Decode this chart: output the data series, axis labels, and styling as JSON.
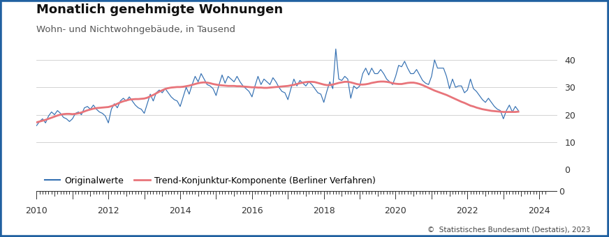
{
  "title": "Monatlich genehmigte Wohnungen",
  "subtitle": "Wohn- und Nichtwohngebäude, in Tausend",
  "ylim": [
    0,
    45
  ],
  "yticks": [
    0,
    10,
    20,
    30,
    40
  ],
  "xlim": [
    2010.0,
    2024.5
  ],
  "xticks": [
    2010,
    2012,
    2014,
    2016,
    2018,
    2020,
    2022,
    2024
  ],
  "xticklabels": [
    "2010",
    "2012",
    "2014",
    "2016",
    "2018",
    "2020",
    "2022",
    "2024"
  ],
  "line_color": "#3470B2",
  "trend_color": "#E8747A",
  "border_color": "#2060A0",
  "title_fontsize": 13,
  "subtitle_fontsize": 9.5,
  "legend_label_original": "Originalwerte",
  "legend_label_trend": "Trend-Konjunktur-Komponente (Berliner Verfahren)",
  "footer_text": "©  Statistisches Bundesamt (Destatis), 2023",
  "original_values": [
    16.0,
    17.5,
    18.5,
    17.0,
    19.5,
    21.0,
    20.0,
    21.5,
    20.5,
    19.0,
    18.5,
    17.5,
    18.5,
    20.5,
    21.0,
    20.0,
    22.5,
    23.0,
    22.0,
    23.5,
    22.0,
    21.0,
    20.5,
    19.5,
    17.0,
    22.0,
    24.0,
    22.5,
    25.0,
    26.0,
    25.0,
    26.5,
    25.0,
    23.5,
    22.5,
    22.0,
    20.5,
    24.0,
    27.5,
    25.0,
    28.0,
    29.0,
    28.0,
    29.5,
    28.0,
    26.5,
    25.5,
    25.0,
    23.0,
    26.5,
    30.0,
    27.5,
    31.0,
    34.0,
    32.0,
    35.0,
    33.0,
    31.0,
    30.5,
    29.5,
    27.0,
    31.0,
    34.5,
    31.5,
    34.0,
    33.0,
    32.0,
    34.0,
    32.0,
    30.5,
    29.5,
    28.5,
    26.5,
    30.5,
    34.0,
    31.0,
    33.0,
    32.0,
    31.0,
    33.5,
    32.0,
    30.0,
    28.5,
    28.0,
    25.5,
    29.5,
    33.0,
    30.5,
    32.5,
    31.5,
    30.5,
    32.0,
    31.0,
    29.5,
    28.0,
    27.5,
    24.5,
    28.5,
    32.0,
    29.5,
    44.0,
    33.0,
    32.5,
    34.0,
    33.0,
    26.0,
    30.5,
    29.5,
    30.5,
    35.0,
    37.0,
    34.5,
    37.0,
    35.0,
    35.0,
    36.5,
    35.0,
    33.0,
    32.0,
    31.0,
    34.0,
    38.0,
    37.5,
    39.5,
    37.0,
    35.0,
    35.0,
    36.5,
    34.5,
    32.5,
    31.5,
    31.0,
    34.0,
    40.0,
    37.0,
    37.0,
    37.0,
    34.0,
    29.5,
    33.0,
    30.0,
    30.5,
    30.5,
    28.0,
    29.0,
    33.0,
    29.5,
    28.5,
    27.0,
    25.5,
    24.5,
    26.0,
    24.5,
    23.0,
    22.0,
    21.5,
    18.5,
    21.5,
    23.5,
    21.0,
    23.0,
    21.5
  ],
  "trend_values": [
    17.2,
    17.5,
    17.8,
    18.1,
    18.5,
    18.9,
    19.3,
    19.7,
    20.0,
    20.2,
    20.3,
    20.3,
    20.2,
    20.3,
    20.5,
    20.8,
    21.2,
    21.6,
    21.9,
    22.2,
    22.4,
    22.5,
    22.6,
    22.7,
    22.8,
    23.1,
    23.5,
    24.0,
    24.5,
    24.9,
    25.2,
    25.5,
    25.6,
    25.7,
    25.7,
    25.8,
    25.9,
    26.2,
    26.7,
    27.2,
    27.8,
    28.4,
    28.9,
    29.4,
    29.7,
    29.9,
    30.0,
    30.1,
    30.1,
    30.2,
    30.4,
    30.6,
    30.9,
    31.2,
    31.5,
    31.7,
    31.8,
    31.7,
    31.5,
    31.2,
    31.0,
    30.8,
    30.7,
    30.6,
    30.5,
    30.5,
    30.5,
    30.4,
    30.4,
    30.3,
    30.2,
    30.1,
    30.0,
    30.0,
    29.9,
    29.9,
    29.8,
    29.8,
    29.9,
    30.0,
    30.1,
    30.2,
    30.3,
    30.4,
    30.5,
    30.7,
    30.9,
    31.2,
    31.5,
    31.7,
    31.9,
    32.0,
    32.0,
    31.9,
    31.6,
    31.3,
    31.0,
    30.8,
    30.8,
    31.0,
    31.3,
    31.6,
    31.8,
    32.0,
    32.0,
    31.8,
    31.5,
    31.2,
    31.0,
    31.0,
    31.1,
    31.3,
    31.6,
    31.8,
    32.0,
    32.1,
    32.1,
    32.0,
    31.8,
    31.5,
    31.3,
    31.2,
    31.2,
    31.4,
    31.6,
    31.7,
    31.7,
    31.5,
    31.2,
    30.8,
    30.3,
    29.8,
    29.3,
    28.8,
    28.4,
    28.0,
    27.6,
    27.2,
    26.7,
    26.2,
    25.7,
    25.2,
    24.7,
    24.3,
    23.8,
    23.3,
    23.0,
    22.6,
    22.3,
    22.0,
    21.8,
    21.6,
    21.4,
    21.3,
    21.2,
    21.1,
    21.0,
    21.0,
    21.0,
    21.0,
    21.0,
    21.1
  ]
}
